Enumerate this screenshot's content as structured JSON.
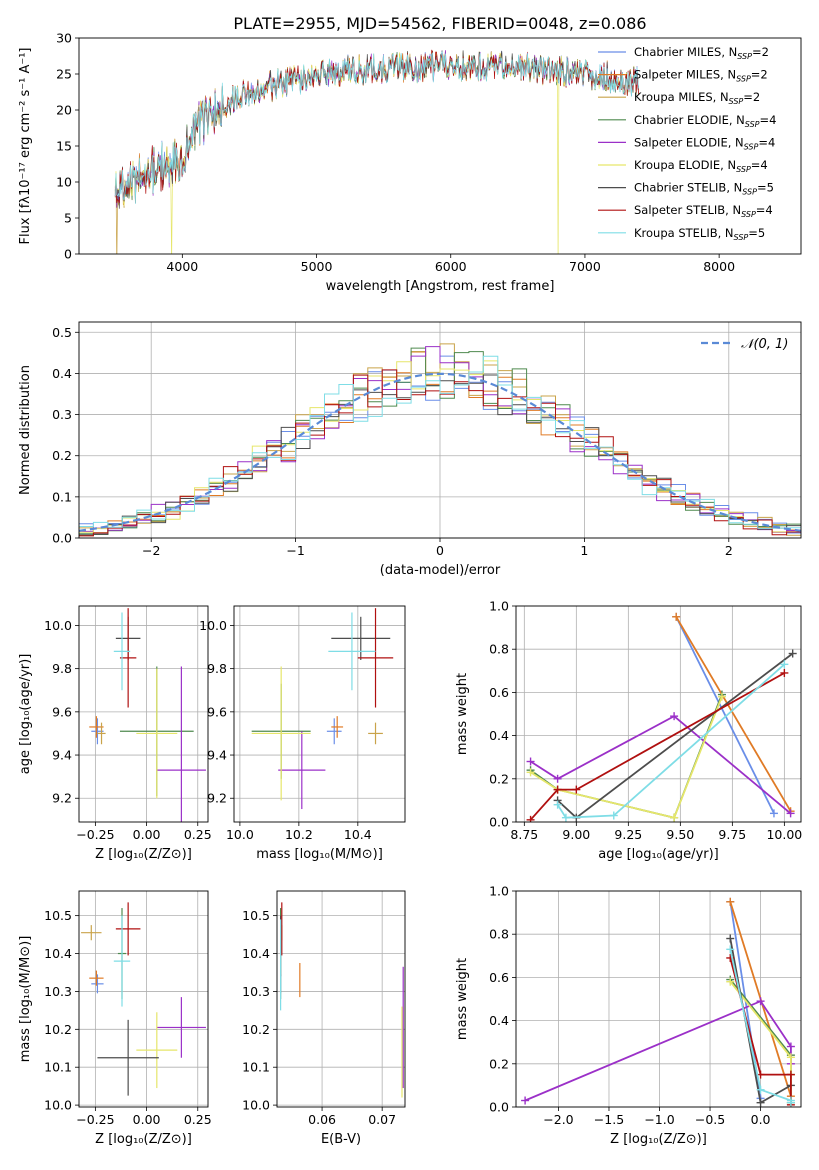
{
  "colors": [
    "#6a8ee8",
    "#e07b26",
    "#c9a34a",
    "#4f8a4f",
    "#9b30c8",
    "#e6e66a",
    "#4d4d4d",
    "#b01010",
    "#7fdde6"
  ],
  "chart_data": [
    {
      "id": "spectrum",
      "type": "line",
      "title": "PLATE=2955, MJD=54562, FIBERID=0048, z=0.086",
      "xlabel": "wavelength [Angstrom, rest frame]",
      "ylabel": "Flux [fλ10⁻¹⁷ erg cm⁻² s⁻¹ A⁻¹]",
      "xlim": [
        3230,
        8610
      ],
      "ylim": [
        0,
        30
      ],
      "xticks": [
        4000,
        5000,
        6000,
        7000,
        8000
      ],
      "yticks": [
        0,
        5,
        10,
        15,
        20,
        25,
        30
      ],
      "legend_position": "top-right",
      "series": [
        {
          "name": "Chabrier MILES, N_SSP=2",
          "label": "Chabrier MILES, N",
          "sub": "SSP",
          "suffix": "=2"
        },
        {
          "name": "Salpeter MILES, N_SSP=2",
          "label": "Salpeter MILES, N",
          "sub": "SSP",
          "suffix": "=2"
        },
        {
          "name": "Kroupa MILES, N_SSP=2",
          "label": "Kroupa MILES, N",
          "sub": "SSP",
          "suffix": "=2"
        },
        {
          "name": "Chabrier ELODIE, N_SSP=4",
          "label": "Chabrier ELODIE, N",
          "sub": "SSP",
          "suffix": "=4"
        },
        {
          "name": "Salpeter ELODIE, N_SSP=4",
          "label": "Salpeter ELODIE, N",
          "sub": "SSP",
          "suffix": "=4"
        },
        {
          "name": "Kroupa ELODIE, N_SSP=4",
          "label": "Kroupa ELODIE, N",
          "sub": "SSP",
          "suffix": "=4"
        },
        {
          "name": "Chabrier STELIB, N_SSP=5",
          "label": "Chabrier STELIB, N",
          "sub": "SSP",
          "suffix": "=5"
        },
        {
          "name": "Salpeter STELIB, N_SSP=4",
          "label": "Salpeter STELIB, N",
          "sub": "SSP",
          "suffix": "=4"
        },
        {
          "name": "Kroupa STELIB, N_SSP=5",
          "label": "Kroupa STELIB, N",
          "sub": "SSP",
          "suffix": "=5"
        }
      ],
      "continuum": {
        "wavelength": [
          3500,
          3700,
          3900,
          4000,
          4100,
          4300,
          4500,
          4800,
          5000,
          5200,
          5500,
          6000,
          6500,
          7000,
          7400
        ],
        "flux": [
          8.5,
          11.0,
          12.5,
          14.0,
          18.0,
          20.5,
          22.5,
          24.0,
          24.8,
          25.5,
          25.8,
          26.2,
          26.0,
          25.0,
          24.0
        ]
      },
      "noise_amplitude": 1.6,
      "drops": [
        {
          "series": 2,
          "wavelength": 3510
        },
        {
          "series": 5,
          "wavelength": 3920
        },
        {
          "series": 5,
          "wavelength": 6800
        },
        {
          "series": 1,
          "wavelength": 7420
        }
      ]
    },
    {
      "id": "residuals",
      "type": "histogram",
      "xlabel": "(data-model)/error",
      "ylabel": "Normed distribution",
      "xlim": [
        -2.5,
        2.5
      ],
      "ylim": [
        0,
        0.525
      ],
      "xticks": [
        -2,
        -1,
        0,
        1,
        2
      ],
      "yticks": [
        0.0,
        0.1,
        0.2,
        0.3,
        0.4,
        0.5
      ],
      "bin_edges": [
        -2.5,
        2.5
      ],
      "bin_count": 50,
      "reference": {
        "name": "N(0,1)",
        "label": "𝒩(0, 1)",
        "mean": 0,
        "sigma": 1
      },
      "jitter": 0.035
    },
    {
      "id": "age-vs-Z",
      "type": "scatter",
      "xlabel": "Z [log₁₀(Z/Z⊙)]",
      "ylabel": "age  [log₁₀(age/yr)]",
      "xlim": [
        -0.33,
        0.3
      ],
      "ylim": [
        9.09,
        10.09
      ],
      "xticks": [
        -0.25,
        0.0,
        0.25
      ],
      "yticks": [
        9.2,
        9.4,
        9.6,
        9.8,
        10.0
      ],
      "points": [
        {
          "s": 0,
          "x": -0.24,
          "y": 9.51,
          "xe": 0.03,
          "ye": 0.06
        },
        {
          "s": 1,
          "x": -0.245,
          "y": 9.53,
          "xe": 0.035,
          "ye": 0.05
        },
        {
          "s": 2,
          "x": -0.22,
          "y": 9.5,
          "xe": 0.02,
          "ye": 0.05
        },
        {
          "s": 3,
          "x": 0.05,
          "y": 9.51,
          "xe": 0.18,
          "ye": 0.3
        },
        {
          "s": 4,
          "x": 0.17,
          "y": 9.33,
          "xe": 0.12,
          "ye": 0.48
        },
        {
          "s": 5,
          "x": 0.05,
          "y": 9.5,
          "xe": 0.1,
          "ye": 0.3
        },
        {
          "s": 6,
          "x": -0.09,
          "y": 9.94,
          "xe": 0.06,
          "ye": 0.1
        },
        {
          "s": 7,
          "x": -0.09,
          "y": 9.85,
          "xe": 0.04,
          "ye": 0.23
        },
        {
          "s": 8,
          "x": -0.12,
          "y": 9.88,
          "xe": 0.04,
          "ye": 0.18
        }
      ]
    },
    {
      "id": "age-vs-mass",
      "type": "scatter",
      "xlabel": "mass [log₁₀(M/M⊙)]",
      "ylabel": "",
      "xlim": [
        9.98,
        10.56
      ],
      "ylim": [
        9.09,
        10.09
      ],
      "xticks": [
        10.0,
        10.2,
        10.4
      ],
      "yticks": [
        9.2,
        9.4,
        9.6,
        9.8,
        10.0
      ],
      "points": [
        {
          "s": 0,
          "x": 10.32,
          "y": 9.51,
          "xe": 0.025,
          "ye": 0.06
        },
        {
          "s": 1,
          "x": 10.33,
          "y": 9.53,
          "xe": 0.02,
          "ye": 0.05
        },
        {
          "s": 2,
          "x": 10.46,
          "y": 9.5,
          "xe": 0.025,
          "ye": 0.05
        },
        {
          "s": 3,
          "x": 10.14,
          "y": 9.51,
          "xe": 0.1,
          "ye": 0.22
        },
        {
          "s": 4,
          "x": 10.21,
          "y": 9.33,
          "xe": 0.08,
          "ye": 0.18
        },
        {
          "s": 5,
          "x": 10.14,
          "y": 9.5,
          "xe": 0.1,
          "ye": 0.31
        },
        {
          "s": 6,
          "x": 10.41,
          "y": 9.94,
          "xe": 0.1,
          "ye": 0.1
        },
        {
          "s": 7,
          "x": 10.46,
          "y": 9.85,
          "xe": 0.06,
          "ye": 0.23
        },
        {
          "s": 8,
          "x": 10.38,
          "y": 9.88,
          "xe": 0.08,
          "ye": 0.18
        }
      ]
    },
    {
      "id": "weight-vs-age",
      "type": "line",
      "xlabel": "age  [log₁₀(age/yr)]",
      "ylabel": "mass weight",
      "xlim": [
        8.71,
        10.08
      ],
      "ylim": [
        0,
        1
      ],
      "xticks": [
        8.75,
        9.0,
        9.25,
        9.5,
        9.75,
        10.0
      ],
      "yticks": [
        0.0,
        0.2,
        0.4,
        0.6,
        0.8,
        1.0
      ],
      "series": [
        {
          "s": 0,
          "x": [
            9.48,
            9.95
          ],
          "y": [
            0.95,
            0.04
          ]
        },
        {
          "s": 1,
          "x": [
            9.48,
            10.03
          ],
          "y": [
            0.95,
            0.05
          ]
        },
        {
          "s": 3,
          "x": [
            8.78,
            8.91,
            9.47,
            9.7
          ],
          "y": [
            0.24,
            0.15,
            0.02,
            0.59
          ]
        },
        {
          "s": 4,
          "x": [
            8.78,
            8.91,
            9.47,
            10.03
          ],
          "y": [
            0.28,
            0.2,
            0.49,
            0.04
          ]
        },
        {
          "s": 5,
          "x": [
            8.78,
            8.91,
            9.47,
            9.7
          ],
          "y": [
            0.23,
            0.15,
            0.02,
            0.58
          ]
        },
        {
          "s": 6,
          "x": [
            8.91,
            9.0,
            10.04
          ],
          "y": [
            0.1,
            0.02,
            0.78
          ]
        },
        {
          "s": 7,
          "x": [
            8.78,
            8.91,
            9.0,
            10.0
          ],
          "y": [
            0.01,
            0.15,
            0.15,
            0.69
          ]
        },
        {
          "s": 8,
          "x": [
            8.91,
            8.95,
            9.18,
            10.0
          ],
          "y": [
            0.08,
            0.02,
            0.03,
            0.73
          ]
        }
      ]
    },
    {
      "id": "mass-vs-Z",
      "type": "scatter",
      "xlabel": "Z [log₁₀(Z/Z⊙)]",
      "ylabel": "mass [log₁₀(M/M⊙)]",
      "xlim": [
        -0.33,
        0.3
      ],
      "ylim": [
        9.995,
        10.565
      ],
      "xticks": [
        -0.25,
        0.0,
        0.25
      ],
      "yticks": [
        10.0,
        10.1,
        10.2,
        10.3,
        10.4,
        10.5
      ],
      "points": [
        {
          "s": 0,
          "x": -0.24,
          "y": 10.32,
          "xe": 0.03,
          "ye": 0.025
        },
        {
          "s": 1,
          "x": -0.245,
          "y": 10.335,
          "xe": 0.035,
          "ye": 0.02
        },
        {
          "s": 2,
          "x": -0.27,
          "y": 10.455,
          "xe": 0.05,
          "ye": 0.02
        },
        {
          "s": 3,
          "x": -0.12,
          "y": 10.4,
          "xe": 0.02,
          "ye": 0.12
        },
        {
          "s": 4,
          "x": 0.17,
          "y": 10.205,
          "xe": 0.12,
          "ye": 0.08
        },
        {
          "s": 5,
          "x": 0.05,
          "y": 10.145,
          "xe": 0.1,
          "ye": 0.1
        },
        {
          "s": 6,
          "x": -0.09,
          "y": 10.125,
          "xe": 0.15,
          "ye": 0.1
        },
        {
          "s": 7,
          "x": -0.09,
          "y": 10.465,
          "xe": 0.06,
          "ye": 0.07
        },
        {
          "s": 8,
          "x": -0.12,
          "y": 10.38,
          "xe": 0.04,
          "ye": 0.12
        }
      ]
    },
    {
      "id": "mass-vs-EBV",
      "type": "scatter",
      "xlabel": "E(B-V)",
      "ylabel": "",
      "xlim": [
        0.0525,
        0.0738
      ],
      "ylim": [
        9.995,
        10.565
      ],
      "xticks": [
        0.06,
        0.07
      ],
      "yticks": [
        10.0,
        10.1,
        10.2,
        10.3,
        10.4,
        10.5
      ],
      "points": [
        {
          "s": 0,
          "x": 0.0531,
          "y": 10.32,
          "xe": 0,
          "ye": 0.025
        },
        {
          "s": 1,
          "x": 0.0563,
          "y": 10.33,
          "xe": 0,
          "ye": 0.045
        },
        {
          "s": 2,
          "x": 0.0533,
          "y": 10.455,
          "xe": 0,
          "ye": 0.02
        },
        {
          "s": 3,
          "x": 0.0531,
          "y": 10.4,
          "xe": 0,
          "ye": 0.12
        },
        {
          "s": 4,
          "x": 0.0735,
          "y": 10.205,
          "xe": 0,
          "ye": 0.16
        },
        {
          "s": 5,
          "x": 0.0733,
          "y": 10.14,
          "xe": 0,
          "ye": 0.12
        },
        {
          "s": 6,
          "x": 0.0531,
          "y": 10.42,
          "xe": 0,
          "ye": 0.08
        },
        {
          "s": 7,
          "x": 0.0533,
          "y": 10.465,
          "xe": 0,
          "ye": 0.07
        },
        {
          "s": 8,
          "x": 0.0531,
          "y": 10.37,
          "xe": 0,
          "ye": 0.12
        }
      ]
    },
    {
      "id": "weight-vs-Z",
      "type": "line",
      "xlabel": "Z [log₁₀(Z/Z⊙)]",
      "ylabel": "mass weight",
      "xlim": [
        -2.42,
        0.4
      ],
      "ylim": [
        0,
        1
      ],
      "xticks": [
        -2.0,
        -1.5,
        -1.0,
        -0.5,
        0.0
      ],
      "yticks": [
        0.0,
        0.2,
        0.4,
        0.6,
        0.8,
        1.0
      ],
      "series": [
        {
          "s": 0,
          "x": [
            -0.3,
            0.0
          ],
          "y": [
            0.95,
            0.04
          ]
        },
        {
          "s": 1,
          "x": [
            -0.3,
            0.3
          ],
          "y": [
            0.95,
            0.05
          ]
        },
        {
          "s": 3,
          "x": [
            -0.3,
            0.3,
            0.3,
            0.3
          ],
          "y": [
            0.59,
            0.24,
            0.15,
            0.02
          ]
        },
        {
          "s": 4,
          "x": [
            -2.33,
            0.0,
            0.3,
            0.3
          ],
          "y": [
            0.03,
            0.49,
            0.28,
            0.2
          ]
        },
        {
          "s": 5,
          "x": [
            -0.3,
            0.3,
            0.3,
            0.3
          ],
          "y": [
            0.58,
            0.23,
            0.15,
            0.02
          ]
        },
        {
          "s": 6,
          "x": [
            -0.3,
            0.0,
            0.3
          ],
          "y": [
            0.78,
            0.02,
            0.1
          ]
        },
        {
          "s": 7,
          "x": [
            -0.3,
            0.0,
            0.3,
            0.3
          ],
          "y": [
            0.69,
            0.15,
            0.15,
            0.01
          ]
        },
        {
          "s": 8,
          "x": [
            -0.3,
            0.0,
            0.3,
            0.3
          ],
          "y": [
            0.73,
            0.08,
            0.03,
            0.02
          ]
        }
      ]
    }
  ]
}
